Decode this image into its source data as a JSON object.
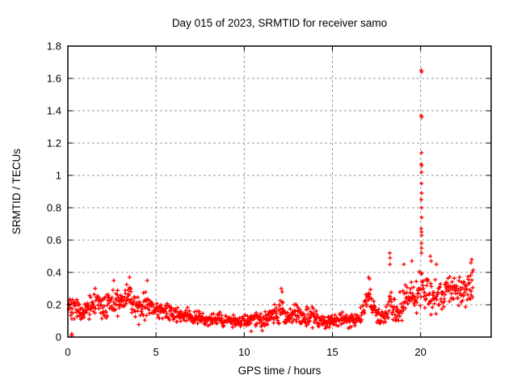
{
  "window": {
    "kind": "gnuplot-figure",
    "background": "#ffffff"
  },
  "chart_data": {
    "type": "scatter",
    "title": "Day 015 of 2023, SRMTID for receiver samo",
    "xlabel": "GPS time / hours",
    "ylabel": "SRMTID / TECUs",
    "xlim": [
      0,
      24
    ],
    "ylim": [
      0,
      1.8
    ],
    "x_ticks": [
      {
        "v": 0,
        "label": "0"
      },
      {
        "v": 5,
        "label": "5"
      },
      {
        "v": 10,
        "label": "10"
      },
      {
        "v": 15,
        "label": "15"
      },
      {
        "v": 20,
        "label": "20"
      }
    ],
    "y_ticks": [
      {
        "v": 0.0,
        "label": "0"
      },
      {
        "v": 0.2,
        "label": "0.2"
      },
      {
        "v": 0.4,
        "label": "0.4"
      },
      {
        "v": 0.6,
        "label": "0.6"
      },
      {
        "v": 0.8,
        "label": "0.8"
      },
      {
        "v": 1.0,
        "label": "1"
      },
      {
        "v": 1.2,
        "label": "1.2"
      },
      {
        "v": 1.4,
        "label": "1.4"
      },
      {
        "v": 1.6,
        "label": "1.6"
      },
      {
        "v": 1.8,
        "label": "1.8"
      }
    ],
    "grid": {
      "on": true,
      "style": "dashed",
      "color": "#9a9a9a",
      "dash": "3,3"
    },
    "frame_color": "#000000",
    "marker": {
      "shape": "plus",
      "color": "#ff0000",
      "half_size": 2.5,
      "stroke_width": 1.3
    },
    "series_name": "SRMTID",
    "time_span": {
      "start": 0.03,
      "end": 23.0,
      "points_per_hour": 46,
      "seed": 42
    },
    "band_profile": [
      {
        "t": 0.0,
        "mid": 0.2,
        "spread": 0.09
      },
      {
        "t": 0.5,
        "mid": 0.17,
        "spread": 0.07
      },
      {
        "t": 1.0,
        "mid": 0.16,
        "spread": 0.07
      },
      {
        "t": 1.5,
        "mid": 0.22,
        "spread": 0.1
      },
      {
        "t": 2.0,
        "mid": 0.18,
        "spread": 0.09
      },
      {
        "t": 2.5,
        "mid": 0.22,
        "spread": 0.11
      },
      {
        "t": 3.0,
        "mid": 0.2,
        "spread": 0.1
      },
      {
        "t": 3.5,
        "mid": 0.24,
        "spread": 0.12
      },
      {
        "t": 4.0,
        "mid": 0.18,
        "spread": 0.08
      },
      {
        "t": 4.5,
        "mid": 0.21,
        "spread": 0.1
      },
      {
        "t": 5.0,
        "mid": 0.16,
        "spread": 0.06
      },
      {
        "t": 5.5,
        "mid": 0.16,
        "spread": 0.07
      },
      {
        "t": 6.0,
        "mid": 0.14,
        "spread": 0.05
      },
      {
        "t": 6.5,
        "mid": 0.14,
        "spread": 0.05
      },
      {
        "t": 7.0,
        "mid": 0.13,
        "spread": 0.05
      },
      {
        "t": 7.5,
        "mid": 0.12,
        "spread": 0.05
      },
      {
        "t": 8.0,
        "mid": 0.11,
        "spread": 0.05
      },
      {
        "t": 8.5,
        "mid": 0.11,
        "spread": 0.05
      },
      {
        "t": 9.0,
        "mid": 0.1,
        "spread": 0.05
      },
      {
        "t": 9.5,
        "mid": 0.1,
        "spread": 0.05
      },
      {
        "t": 10.0,
        "mid": 0.1,
        "spread": 0.05
      },
      {
        "t": 10.5,
        "mid": 0.11,
        "spread": 0.05
      },
      {
        "t": 11.0,
        "mid": 0.11,
        "spread": 0.06
      },
      {
        "t": 11.5,
        "mid": 0.11,
        "spread": 0.06
      },
      {
        "t": 12.1,
        "mid": 0.18,
        "spread": 0.1
      },
      {
        "t": 12.5,
        "mid": 0.12,
        "spread": 0.06
      },
      {
        "t": 12.9,
        "mid": 0.16,
        "spread": 0.08
      },
      {
        "t": 13.3,
        "mid": 0.11,
        "spread": 0.06
      },
      {
        "t": 13.8,
        "mid": 0.14,
        "spread": 0.07
      },
      {
        "t": 14.3,
        "mid": 0.1,
        "spread": 0.05
      },
      {
        "t": 15.0,
        "mid": 0.1,
        "spread": 0.05
      },
      {
        "t": 15.5,
        "mid": 0.12,
        "spread": 0.06
      },
      {
        "t": 16.0,
        "mid": 0.1,
        "spread": 0.05
      },
      {
        "t": 16.6,
        "mid": 0.13,
        "spread": 0.06
      },
      {
        "t": 17.1,
        "mid": 0.26,
        "spread": 0.1
      },
      {
        "t": 17.5,
        "mid": 0.14,
        "spread": 0.07
      },
      {
        "t": 17.9,
        "mid": 0.12,
        "spread": 0.06
      },
      {
        "t": 18.3,
        "mid": 0.2,
        "spread": 0.12
      },
      {
        "t": 18.7,
        "mid": 0.15,
        "spread": 0.08
      },
      {
        "t": 19.1,
        "mid": 0.22,
        "spread": 0.12
      },
      {
        "t": 19.6,
        "mid": 0.25,
        "spread": 0.13
      },
      {
        "t": 20.0,
        "mid": 0.27,
        "spread": 0.14
      },
      {
        "t": 20.4,
        "mid": 0.28,
        "spread": 0.14
      },
      {
        "t": 20.8,
        "mid": 0.26,
        "spread": 0.13
      },
      {
        "t": 21.2,
        "mid": 0.26,
        "spread": 0.12
      },
      {
        "t": 21.6,
        "mid": 0.29,
        "spread": 0.12
      },
      {
        "t": 22.0,
        "mid": 0.3,
        "spread": 0.12
      },
      {
        "t": 22.4,
        "mid": 0.27,
        "spread": 0.11
      },
      {
        "t": 22.8,
        "mid": 0.32,
        "spread": 0.13
      },
      {
        "t": 23.0,
        "mid": 0.3,
        "spread": 0.12
      }
    ],
    "outlier_points": [
      [
        0.2,
        0.01
      ],
      [
        0.23,
        0.01
      ],
      [
        0.22,
        0.02
      ],
      [
        2.6,
        0.35
      ],
      [
        3.5,
        0.37
      ],
      [
        4.5,
        0.35
      ],
      [
        12.1,
        0.3
      ],
      [
        12.15,
        0.28
      ],
      [
        17.05,
        0.37
      ],
      [
        17.1,
        0.36
      ],
      [
        18.25,
        0.52
      ],
      [
        18.27,
        0.49
      ],
      [
        18.26,
        0.45
      ],
      [
        19.05,
        0.45
      ],
      [
        19.5,
        0.47
      ],
      [
        20.04,
        1.65
      ],
      [
        20.06,
        1.64
      ],
      [
        20.04,
        1.37
      ],
      [
        20.06,
        1.36
      ],
      [
        20.05,
        1.14
      ],
      [
        20.04,
        1.07
      ],
      [
        20.06,
        1.06
      ],
      [
        20.05,
        1.02
      ],
      [
        20.05,
        0.95
      ],
      [
        20.06,
        0.89
      ],
      [
        20.04,
        0.85
      ],
      [
        20.05,
        0.8
      ],
      [
        20.06,
        0.74
      ],
      [
        20.04,
        0.67
      ],
      [
        20.05,
        0.65
      ],
      [
        20.06,
        0.63
      ],
      [
        20.05,
        0.58
      ],
      [
        20.06,
        0.55
      ],
      [
        20.05,
        0.52
      ],
      [
        20.55,
        0.5
      ],
      [
        20.6,
        0.47
      ],
      [
        20.9,
        0.45
      ],
      [
        22.85,
        0.46
      ],
      [
        22.9,
        0.48
      ]
    ]
  }
}
